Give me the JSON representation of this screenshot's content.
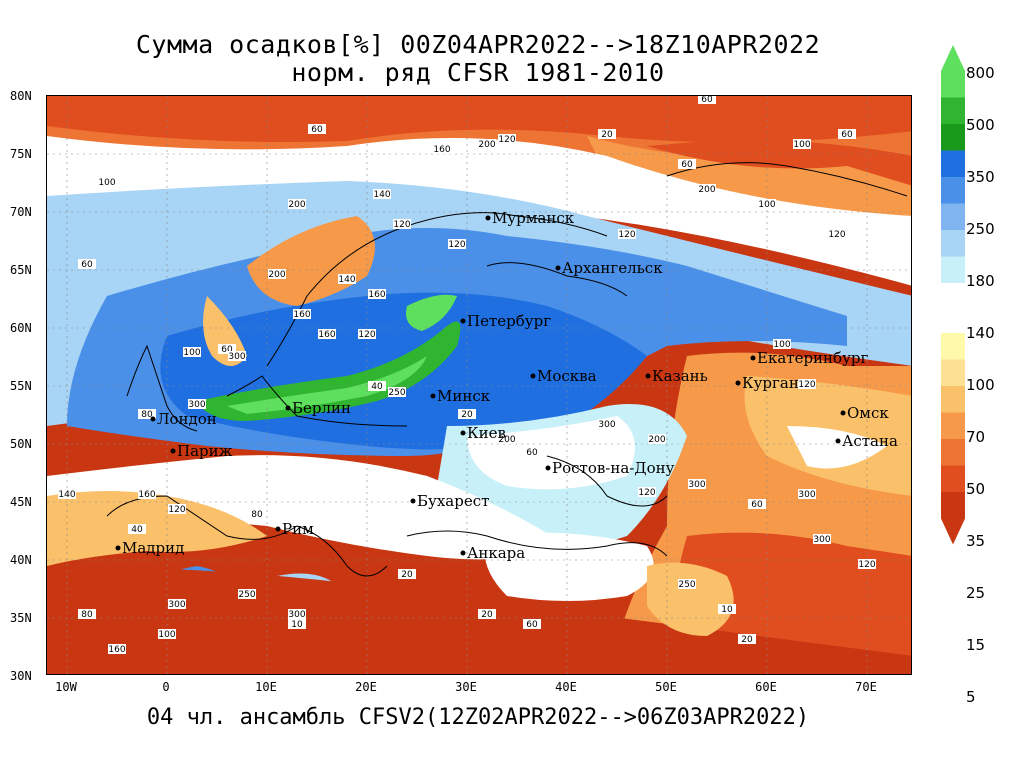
{
  "title_line1": "Сумма осадков[%] 00Z04APR2022-->18Z10APR2022",
  "title_line2": "норм. ряд CFSR 1981-2010",
  "footer": "04 чл. ансамбль CFSV2(12Z02APR2022-->06Z03APR2022)",
  "lat_labels": [
    "80N",
    "75N",
    "70N",
    "65N",
    "60N",
    "55N",
    "50N",
    "45N",
    "40N",
    "35N",
    "30N"
  ],
  "lon_labels": [
    "10W",
    "0",
    "10E",
    "20E",
    "30E",
    "40E",
    "50E",
    "60E",
    "70E"
  ],
  "colorbar": {
    "labels": [
      "800",
      "500",
      "350",
      "250",
      "180",
      "140",
      "100",
      "70",
      "50",
      "35",
      "25",
      "15",
      "5"
    ],
    "colors": [
      "#5ee05e",
      "#2fb52f",
      "#1a9a1a",
      "#1f6fe0",
      "#4a8fe8",
      "#7fb4f0",
      "#a8d4f5",
      "#c8f0f8",
      "#ffffff",
      "#fffaaa",
      "#fde092",
      "#fbc06a",
      "#f69a4a",
      "#ee7434",
      "#e04d1e",
      "#c93612"
    ]
  },
  "cities": [
    {
      "name": "Мурманск"
    },
    {
      "name": "Архангельск"
    },
    {
      "name": "Петербург"
    },
    {
      "name": "Москва"
    },
    {
      "name": "Казань"
    },
    {
      "name": "Екатеринбург"
    },
    {
      "name": "Курган"
    },
    {
      "name": "Омск"
    },
    {
      "name": "Астана"
    },
    {
      "name": "Минск"
    },
    {
      "name": "Киев"
    },
    {
      "name": "Берлин"
    },
    {
      "name": "Лондон"
    },
    {
      "name": "Париж"
    },
    {
      "name": "Ростов-на-Дону"
    },
    {
      "name": "Бухарест"
    },
    {
      "name": "Рим"
    },
    {
      "name": "Мадрид"
    },
    {
      "name": "Анкара"
    }
  ],
  "contour_labels": [
    "100",
    "160",
    "200",
    "120",
    "60",
    "140",
    "80",
    "300",
    "250",
    "40",
    "20",
    "10"
  ]
}
